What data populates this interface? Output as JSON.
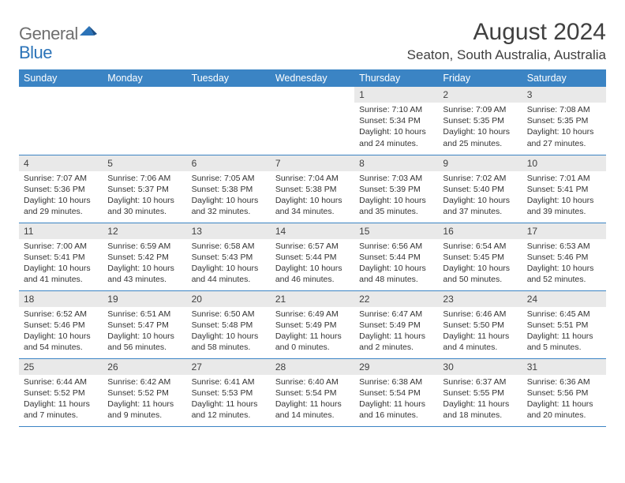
{
  "logo": {
    "text1": "General",
    "text2": "Blue"
  },
  "title": "August 2024",
  "location": "Seaton, South Australia, Australia",
  "colors": {
    "header_bg": "#3b84c4",
    "header_text": "#ffffff",
    "daynum_bg": "#e9e9e9",
    "border": "#3b84c4",
    "text": "#333333",
    "logo_gray": "#6f6f6f",
    "logo_blue": "#2b73b8"
  },
  "day_names": [
    "Sunday",
    "Monday",
    "Tuesday",
    "Wednesday",
    "Thursday",
    "Friday",
    "Saturday"
  ],
  "weeks": [
    [
      null,
      null,
      null,
      null,
      {
        "n": "1",
        "sunrise": "7:10 AM",
        "sunset": "5:34 PM",
        "dl1": "Daylight: 10 hours",
        "dl2": "and 24 minutes."
      },
      {
        "n": "2",
        "sunrise": "7:09 AM",
        "sunset": "5:35 PM",
        "dl1": "Daylight: 10 hours",
        "dl2": "and 25 minutes."
      },
      {
        "n": "3",
        "sunrise": "7:08 AM",
        "sunset": "5:35 PM",
        "dl1": "Daylight: 10 hours",
        "dl2": "and 27 minutes."
      }
    ],
    [
      {
        "n": "4",
        "sunrise": "7:07 AM",
        "sunset": "5:36 PM",
        "dl1": "Daylight: 10 hours",
        "dl2": "and 29 minutes."
      },
      {
        "n": "5",
        "sunrise": "7:06 AM",
        "sunset": "5:37 PM",
        "dl1": "Daylight: 10 hours",
        "dl2": "and 30 minutes."
      },
      {
        "n": "6",
        "sunrise": "7:05 AM",
        "sunset": "5:38 PM",
        "dl1": "Daylight: 10 hours",
        "dl2": "and 32 minutes."
      },
      {
        "n": "7",
        "sunrise": "7:04 AM",
        "sunset": "5:38 PM",
        "dl1": "Daylight: 10 hours",
        "dl2": "and 34 minutes."
      },
      {
        "n": "8",
        "sunrise": "7:03 AM",
        "sunset": "5:39 PM",
        "dl1": "Daylight: 10 hours",
        "dl2": "and 35 minutes."
      },
      {
        "n": "9",
        "sunrise": "7:02 AM",
        "sunset": "5:40 PM",
        "dl1": "Daylight: 10 hours",
        "dl2": "and 37 minutes."
      },
      {
        "n": "10",
        "sunrise": "7:01 AM",
        "sunset": "5:41 PM",
        "dl1": "Daylight: 10 hours",
        "dl2": "and 39 minutes."
      }
    ],
    [
      {
        "n": "11",
        "sunrise": "7:00 AM",
        "sunset": "5:41 PM",
        "dl1": "Daylight: 10 hours",
        "dl2": "and 41 minutes."
      },
      {
        "n": "12",
        "sunrise": "6:59 AM",
        "sunset": "5:42 PM",
        "dl1": "Daylight: 10 hours",
        "dl2": "and 43 minutes."
      },
      {
        "n": "13",
        "sunrise": "6:58 AM",
        "sunset": "5:43 PM",
        "dl1": "Daylight: 10 hours",
        "dl2": "and 44 minutes."
      },
      {
        "n": "14",
        "sunrise": "6:57 AM",
        "sunset": "5:44 PM",
        "dl1": "Daylight: 10 hours",
        "dl2": "and 46 minutes."
      },
      {
        "n": "15",
        "sunrise": "6:56 AM",
        "sunset": "5:44 PM",
        "dl1": "Daylight: 10 hours",
        "dl2": "and 48 minutes."
      },
      {
        "n": "16",
        "sunrise": "6:54 AM",
        "sunset": "5:45 PM",
        "dl1": "Daylight: 10 hours",
        "dl2": "and 50 minutes."
      },
      {
        "n": "17",
        "sunrise": "6:53 AM",
        "sunset": "5:46 PM",
        "dl1": "Daylight: 10 hours",
        "dl2": "and 52 minutes."
      }
    ],
    [
      {
        "n": "18",
        "sunrise": "6:52 AM",
        "sunset": "5:46 PM",
        "dl1": "Daylight: 10 hours",
        "dl2": "and 54 minutes."
      },
      {
        "n": "19",
        "sunrise": "6:51 AM",
        "sunset": "5:47 PM",
        "dl1": "Daylight: 10 hours",
        "dl2": "and 56 minutes."
      },
      {
        "n": "20",
        "sunrise": "6:50 AM",
        "sunset": "5:48 PM",
        "dl1": "Daylight: 10 hours",
        "dl2": "and 58 minutes."
      },
      {
        "n": "21",
        "sunrise": "6:49 AM",
        "sunset": "5:49 PM",
        "dl1": "Daylight: 11 hours",
        "dl2": "and 0 minutes."
      },
      {
        "n": "22",
        "sunrise": "6:47 AM",
        "sunset": "5:49 PM",
        "dl1": "Daylight: 11 hours",
        "dl2": "and 2 minutes."
      },
      {
        "n": "23",
        "sunrise": "6:46 AM",
        "sunset": "5:50 PM",
        "dl1": "Daylight: 11 hours",
        "dl2": "and 4 minutes."
      },
      {
        "n": "24",
        "sunrise": "6:45 AM",
        "sunset": "5:51 PM",
        "dl1": "Daylight: 11 hours",
        "dl2": "and 5 minutes."
      }
    ],
    [
      {
        "n": "25",
        "sunrise": "6:44 AM",
        "sunset": "5:52 PM",
        "dl1": "Daylight: 11 hours",
        "dl2": "and 7 minutes."
      },
      {
        "n": "26",
        "sunrise": "6:42 AM",
        "sunset": "5:52 PM",
        "dl1": "Daylight: 11 hours",
        "dl2": "and 9 minutes."
      },
      {
        "n": "27",
        "sunrise": "6:41 AM",
        "sunset": "5:53 PM",
        "dl1": "Daylight: 11 hours",
        "dl2": "and 12 minutes."
      },
      {
        "n": "28",
        "sunrise": "6:40 AM",
        "sunset": "5:54 PM",
        "dl1": "Daylight: 11 hours",
        "dl2": "and 14 minutes."
      },
      {
        "n": "29",
        "sunrise": "6:38 AM",
        "sunset": "5:54 PM",
        "dl1": "Daylight: 11 hours",
        "dl2": "and 16 minutes."
      },
      {
        "n": "30",
        "sunrise": "6:37 AM",
        "sunset": "5:55 PM",
        "dl1": "Daylight: 11 hours",
        "dl2": "and 18 minutes."
      },
      {
        "n": "31",
        "sunrise": "6:36 AM",
        "sunset": "5:56 PM",
        "dl1": "Daylight: 11 hours",
        "dl2": "and 20 minutes."
      }
    ]
  ],
  "labels": {
    "sunrise": "Sunrise:",
    "sunset": "Sunset:"
  }
}
